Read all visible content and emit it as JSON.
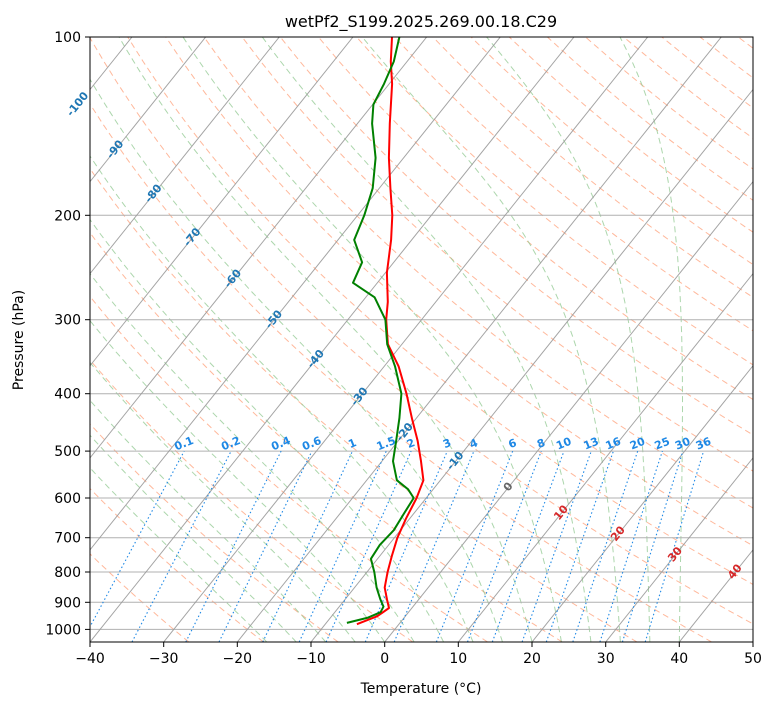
{
  "chart_data": {
    "type": "skew-t",
    "title": "wetPf2_S199.2025.269.00.18.C29",
    "xlabel": "Temperature (°C)",
    "ylabel": "Pressure (hPa)",
    "xlim": [
      -40,
      50
    ],
    "ylim": [
      1050,
      100
    ],
    "x_ticks": [
      -40,
      -30,
      -20,
      -10,
      0,
      10,
      20,
      30,
      40,
      50
    ],
    "y_ticks": [
      100,
      200,
      300,
      400,
      500,
      600,
      700,
      800,
      900,
      1000
    ],
    "isotherm_labels": [
      "-100",
      "-90",
      "-80",
      "-70",
      "-60",
      "-50",
      "-40",
      "-30",
      "-20",
      "-10",
      "0",
      "10",
      "20",
      "30",
      "40"
    ],
    "mixing_ratio_labels": [
      "0.1",
      "0.2",
      "0.4",
      "0.6",
      "1",
      "1.5",
      "2",
      "3",
      "4",
      "6",
      "8",
      "10",
      "13",
      "16",
      "20",
      "25",
      "30",
      "36"
    ],
    "colors": {
      "temperature": "#ff0000",
      "dewpoint": "#008000",
      "isotherm_label": "#1f77b4",
      "warm_label": "#d62728",
      "mixing_ratio": "#1e88e5",
      "dry_adiabat": "#ffa07a",
      "moist_adiabat": "#90c890",
      "grid": "#b0b0b0",
      "zero_label": "#666666"
    },
    "series": [
      {
        "name": "Temperature",
        "points": [
          {
            "p": 980,
            "t": -5.7
          },
          {
            "p": 950,
            "t": -3.8
          },
          {
            "p": 920,
            "t": -3.1
          },
          {
            "p": 890,
            "t": -4.3
          },
          {
            "p": 850,
            "t": -5.9
          },
          {
            "p": 800,
            "t": -7.2
          },
          {
            "p": 750,
            "t": -8.4
          },
          {
            "p": 700,
            "t": -9.6
          },
          {
            "p": 650,
            "t": -10.5
          },
          {
            "p": 600,
            "t": -11.3
          },
          {
            "p": 560,
            "t": -12.3
          },
          {
            "p": 520,
            "t": -14.7
          },
          {
            "p": 480,
            "t": -17.4
          },
          {
            "p": 440,
            "t": -20.6
          },
          {
            "p": 400,
            "t": -24.0
          },
          {
            "p": 360,
            "t": -28.0
          },
          {
            "p": 330,
            "t": -31.9
          },
          {
            "p": 300,
            "t": -34.8
          },
          {
            "p": 280,
            "t": -36.5
          },
          {
            "p": 250,
            "t": -39.8
          },
          {
            "p": 220,
            "t": -42.8
          },
          {
            "p": 200,
            "t": -45.3
          },
          {
            "p": 180,
            "t": -48.5
          },
          {
            "p": 160,
            "t": -52.0
          },
          {
            "p": 140,
            "t": -55.6
          },
          {
            "p": 120,
            "t": -59.6
          },
          {
            "p": 110,
            "t": -62.2
          },
          {
            "p": 100,
            "t": -64.7
          }
        ]
      },
      {
        "name": "Dewpoint",
        "points": [
          {
            "p": 975,
            "t": -7.2
          },
          {
            "p": 955,
            "t": -4.9
          },
          {
            "p": 935,
            "t": -3.8
          },
          {
            "p": 915,
            "t": -4.0
          },
          {
            "p": 890,
            "t": -5.2
          },
          {
            "p": 850,
            "t": -7.0
          },
          {
            "p": 800,
            "t": -9.0
          },
          {
            "p": 760,
            "t": -10.9
          },
          {
            "p": 720,
            "t": -11.2
          },
          {
            "p": 680,
            "t": -10.9
          },
          {
            "p": 640,
            "t": -11.3
          },
          {
            "p": 600,
            "t": -11.7
          },
          {
            "p": 580,
            "t": -13.4
          },
          {
            "p": 560,
            "t": -15.9
          },
          {
            "p": 520,
            "t": -18.5
          },
          {
            "p": 480,
            "t": -20.3
          },
          {
            "p": 440,
            "t": -22.3
          },
          {
            "p": 400,
            "t": -24.7
          },
          {
            "p": 360,
            "t": -28.5
          },
          {
            "p": 330,
            "t": -32.0
          },
          {
            "p": 300,
            "t": -34.9
          },
          {
            "p": 275,
            "t": -38.8
          },
          {
            "p": 260,
            "t": -43.3
          },
          {
            "p": 240,
            "t": -44.3
          },
          {
            "p": 220,
            "t": -47.8
          },
          {
            "p": 200,
            "t": -49.1
          },
          {
            "p": 180,
            "t": -50.9
          },
          {
            "p": 160,
            "t": -53.8
          },
          {
            "p": 140,
            "t": -58.0
          },
          {
            "p": 130,
            "t": -59.9
          },
          {
            "p": 120,
            "t": -60.7
          },
          {
            "p": 110,
            "t": -61.8
          },
          {
            "p": 100,
            "t": -63.7
          }
        ]
      }
    ]
  }
}
